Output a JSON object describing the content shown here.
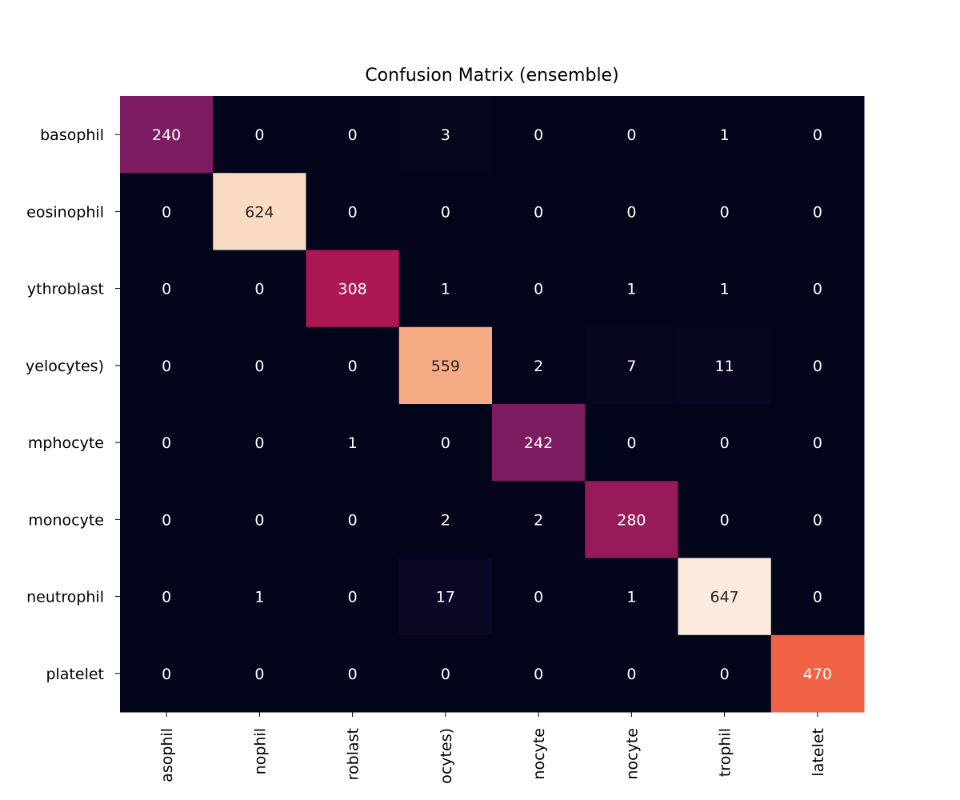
{
  "chart_data": {
    "type": "heatmap",
    "title": "Confusion Matrix (ensemble)",
    "row_labels": [
      "basophil",
      "eosinophil",
      "erythroblast",
      "ig (immature granulocytes: metamyelocytes, myelocytes and promyelocytes)",
      "lymphocyte",
      "monocyte",
      "neutrophil",
      "platelet"
    ],
    "row_labels_visible": [
      "basophil",
      "eosinophil",
      "ythroblast",
      "yelocytes)",
      "mphocyte",
      "monocyte",
      "neutrophil",
      "platelet"
    ],
    "col_labels_visible": [
      "asophil",
      "nophil",
      "roblast",
      "ocytes)",
      "nocyte",
      "nocyte",
      "trophil",
      "latelet"
    ],
    "values": [
      [
        240,
        0,
        0,
        3,
        0,
        0,
        1,
        0
      ],
      [
        0,
        624,
        0,
        0,
        0,
        0,
        0,
        0
      ],
      [
        0,
        0,
        308,
        1,
        0,
        1,
        1,
        0
      ],
      [
        0,
        0,
        0,
        559,
        2,
        7,
        11,
        0
      ],
      [
        0,
        0,
        1,
        0,
        242,
        0,
        0,
        0
      ],
      [
        0,
        0,
        0,
        2,
        2,
        280,
        0,
        0
      ],
      [
        0,
        1,
        0,
        17,
        0,
        1,
        647,
        0
      ],
      [
        0,
        0,
        0,
        0,
        0,
        0,
        0,
        470
      ]
    ],
    "colormap": "rocket",
    "vmin": 0,
    "vmax": 647,
    "colorbar": false,
    "grid": false
  }
}
